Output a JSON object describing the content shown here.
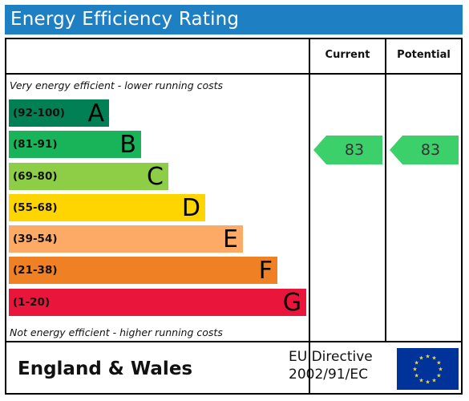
{
  "title": "Energy Efficiency Rating",
  "columns": {
    "current": "Current",
    "potential": "Potential"
  },
  "top_note": "Very energy efficient - lower running costs",
  "bottom_note": "Not energy efficient - higher running costs",
  "bands": [
    {
      "range": "(92-100)",
      "letter": "A",
      "color": "#008054"
    },
    {
      "range": "(81-91)",
      "letter": "B",
      "color": "#19b459"
    },
    {
      "range": "(69-80)",
      "letter": "C",
      "color": "#8dce46"
    },
    {
      "range": "(55-68)",
      "letter": "D",
      "color": "#ffd500"
    },
    {
      "range": "(39-54)",
      "letter": "E",
      "color": "#fcaa65"
    },
    {
      "range": "(21-38)",
      "letter": "F",
      "color": "#ef8023"
    },
    {
      "range": "(1-20)",
      "letter": "G",
      "color": "#e9153b"
    }
  ],
  "current_rating": {
    "value": "83",
    "color": "#3cd06a"
  },
  "potential_rating": {
    "value": "83",
    "color": "#3cd06a"
  },
  "footer": {
    "region": "England & Wales",
    "directive_line1": "EU Directive",
    "directive_line2": "2002/91/EC"
  },
  "eu_flag": {
    "icon": "eu-flag-icon",
    "background": "#003399",
    "star_color": "#ffdd00"
  }
}
